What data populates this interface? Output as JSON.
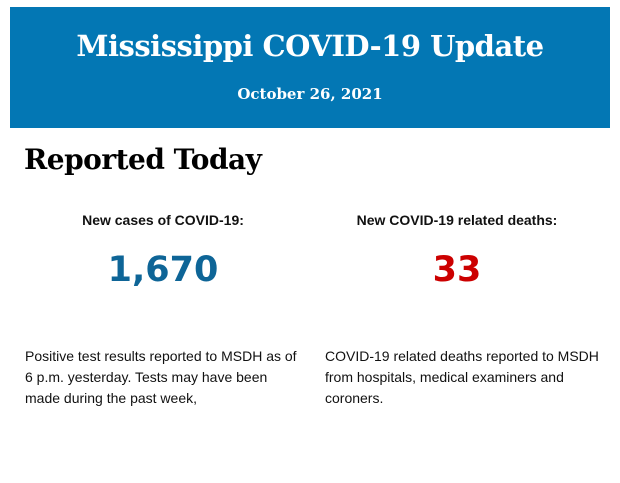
{
  "header": {
    "title": "Mississippi COVID-19 Update",
    "date": "October 26, 2021"
  },
  "section_title": "Reported Today",
  "cases": {
    "label": "New cases of COVID-19:",
    "value": "1,670",
    "description": "Positive test results reported to MSDH as of 6 p.m. yesterday. Tests may have been made during the past week,"
  },
  "deaths": {
    "label": "New COVID-19 related deaths:",
    "value": "33",
    "description": "COVID-19 related deaths reported to MSDH from hospitals, medical examiners and coroners."
  },
  "colors": {
    "banner": "#0377b4",
    "cases": "#0e6597",
    "deaths": "#cc0000"
  }
}
